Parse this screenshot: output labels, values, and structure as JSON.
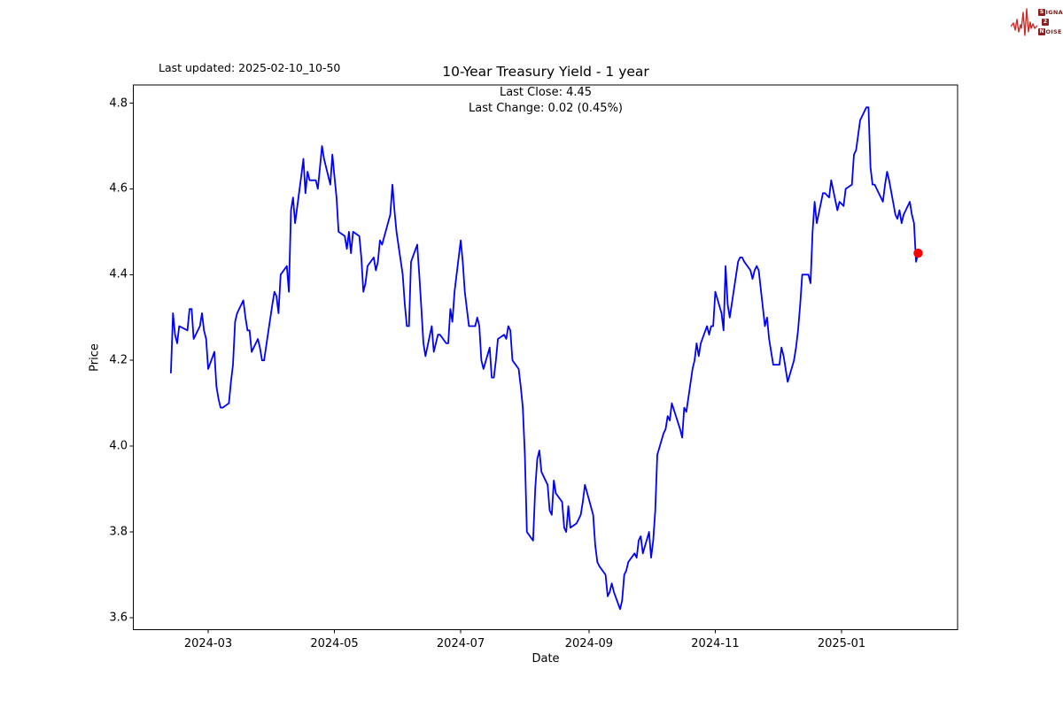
{
  "figure": {
    "last_updated": "Last updated: 2025-02-10_10-50",
    "title": "10-Year Treasury Yield - 1 year",
    "subtitle_line1": "Last Close: 4.45",
    "subtitle_line2": "Last Change: 0.02 (0.45%)"
  },
  "logo": {
    "rows": [
      {
        "boxed": "S",
        "rest": "IGNAL"
      },
      {
        "boxed": "2",
        "rest": ""
      },
      {
        "boxed": "N",
        "rest": "OISE"
      }
    ],
    "waveform_color": "#cf2b26",
    "box_color": "#8c1f1f",
    "text_color": "#7a1a1a"
  },
  "chart_data": {
    "type": "line",
    "title": "10-Year Treasury Yield - 1 year",
    "xlabel": "Date",
    "ylabel": "Price",
    "grid": false,
    "legend": "none",
    "ylim": [
      3.572,
      4.842
    ],
    "xlim": [
      "2024-01-24",
      "2025-02-26"
    ],
    "y_ticks": [
      "3.6",
      "3.8",
      "4.0",
      "4.2",
      "4.4",
      "4.6",
      "4.8"
    ],
    "x_ticks": [
      {
        "label": "2024-03",
        "date": "2024-03-01"
      },
      {
        "label": "2024-05",
        "date": "2024-05-01"
      },
      {
        "label": "2024-07",
        "date": "2024-07-01"
      },
      {
        "label": "2024-09",
        "date": "2024-09-01"
      },
      {
        "label": "2024-11",
        "date": "2024-11-01"
      },
      {
        "label": "2025-01",
        "date": "2025-01-01"
      }
    ],
    "last_point": {
      "date": "2025-02-07",
      "value": 4.45,
      "marker_color": "#ff0000"
    },
    "series": [
      {
        "name": "10-Year Treasury Yield",
        "color": "#0000ff",
        "points": [
          [
            "2024-02-12",
            4.17
          ],
          [
            "2024-02-13",
            4.31
          ],
          [
            "2024-02-14",
            4.26
          ],
          [
            "2024-02-15",
            4.24
          ],
          [
            "2024-02-16",
            4.28
          ],
          [
            "2024-02-20",
            4.27
          ],
          [
            "2024-02-21",
            4.32
          ],
          [
            "2024-02-22",
            4.32
          ],
          [
            "2024-02-23",
            4.25
          ],
          [
            "2024-02-26",
            4.28
          ],
          [
            "2024-02-27",
            4.31
          ],
          [
            "2024-02-28",
            4.27
          ],
          [
            "2024-02-29",
            4.25
          ],
          [
            "2024-03-01",
            4.18
          ],
          [
            "2024-03-04",
            4.22
          ],
          [
            "2024-03-05",
            4.14
          ],
          [
            "2024-03-06",
            4.11
          ],
          [
            "2024-03-07",
            4.09
          ],
          [
            "2024-03-08",
            4.09
          ],
          [
            "2024-03-11",
            4.1
          ],
          [
            "2024-03-12",
            4.15
          ],
          [
            "2024-03-13",
            4.19
          ],
          [
            "2024-03-14",
            4.29
          ],
          [
            "2024-03-15",
            4.31
          ],
          [
            "2024-03-18",
            4.34
          ],
          [
            "2024-03-19",
            4.3
          ],
          [
            "2024-03-20",
            4.27
          ],
          [
            "2024-03-21",
            4.27
          ],
          [
            "2024-03-22",
            4.22
          ],
          [
            "2024-03-25",
            4.25
          ],
          [
            "2024-03-26",
            4.23
          ],
          [
            "2024-03-27",
            4.2
          ],
          [
            "2024-03-28",
            4.2
          ],
          [
            "2024-04-01",
            4.33
          ],
          [
            "2024-04-02",
            4.36
          ],
          [
            "2024-04-03",
            4.35
          ],
          [
            "2024-04-04",
            4.31
          ],
          [
            "2024-04-05",
            4.4
          ],
          [
            "2024-04-08",
            4.42
          ],
          [
            "2024-04-09",
            4.36
          ],
          [
            "2024-04-10",
            4.55
          ],
          [
            "2024-04-11",
            4.58
          ],
          [
            "2024-04-12",
            4.52
          ],
          [
            "2024-04-15",
            4.63
          ],
          [
            "2024-04-16",
            4.67
          ],
          [
            "2024-04-17",
            4.59
          ],
          [
            "2024-04-18",
            4.64
          ],
          [
            "2024-04-19",
            4.62
          ],
          [
            "2024-04-22",
            4.62
          ],
          [
            "2024-04-23",
            4.6
          ],
          [
            "2024-04-24",
            4.65
          ],
          [
            "2024-04-25",
            4.7
          ],
          [
            "2024-04-26",
            4.67
          ],
          [
            "2024-04-29",
            4.61
          ],
          [
            "2024-04-30",
            4.68
          ],
          [
            "2024-05-01",
            4.63
          ],
          [
            "2024-05-02",
            4.58
          ],
          [
            "2024-05-03",
            4.5
          ],
          [
            "2024-05-06",
            4.49
          ],
          [
            "2024-05-07",
            4.46
          ],
          [
            "2024-05-08",
            4.5
          ],
          [
            "2024-05-09",
            4.45
          ],
          [
            "2024-05-10",
            4.5
          ],
          [
            "2024-05-13",
            4.49
          ],
          [
            "2024-05-14",
            4.44
          ],
          [
            "2024-05-15",
            4.36
          ],
          [
            "2024-05-16",
            4.38
          ],
          [
            "2024-05-17",
            4.42
          ],
          [
            "2024-05-20",
            4.44
          ],
          [
            "2024-05-21",
            4.41
          ],
          [
            "2024-05-22",
            4.43
          ],
          [
            "2024-05-23",
            4.48
          ],
          [
            "2024-05-24",
            4.47
          ],
          [
            "2024-05-28",
            4.54
          ],
          [
            "2024-05-29",
            4.61
          ],
          [
            "2024-05-30",
            4.55
          ],
          [
            "2024-05-31",
            4.5
          ],
          [
            "2024-06-03",
            4.4
          ],
          [
            "2024-06-04",
            4.33
          ],
          [
            "2024-06-05",
            4.28
          ],
          [
            "2024-06-06",
            4.28
          ],
          [
            "2024-06-07",
            4.43
          ],
          [
            "2024-06-10",
            4.47
          ],
          [
            "2024-06-11",
            4.4
          ],
          [
            "2024-06-12",
            4.32
          ],
          [
            "2024-06-13",
            4.24
          ],
          [
            "2024-06-14",
            4.21
          ],
          [
            "2024-06-17",
            4.28
          ],
          [
            "2024-06-18",
            4.22
          ],
          [
            "2024-06-20",
            4.26
          ],
          [
            "2024-06-21",
            4.26
          ],
          [
            "2024-06-24",
            4.24
          ],
          [
            "2024-06-25",
            4.24
          ],
          [
            "2024-06-26",
            4.32
          ],
          [
            "2024-06-27",
            4.29
          ],
          [
            "2024-06-28",
            4.36
          ],
          [
            "2024-07-01",
            4.48
          ],
          [
            "2024-07-02",
            4.43
          ],
          [
            "2024-07-03",
            4.36
          ],
          [
            "2024-07-05",
            4.28
          ],
          [
            "2024-07-08",
            4.28
          ],
          [
            "2024-07-09",
            4.3
          ],
          [
            "2024-07-10",
            4.28
          ],
          [
            "2024-07-11",
            4.2
          ],
          [
            "2024-07-12",
            4.18
          ],
          [
            "2024-07-15",
            4.23
          ],
          [
            "2024-07-16",
            4.16
          ],
          [
            "2024-07-17",
            4.16
          ],
          [
            "2024-07-18",
            4.2
          ],
          [
            "2024-07-19",
            4.25
          ],
          [
            "2024-07-22",
            4.26
          ],
          [
            "2024-07-23",
            4.25
          ],
          [
            "2024-07-24",
            4.28
          ],
          [
            "2024-07-25",
            4.27
          ],
          [
            "2024-07-26",
            4.2
          ],
          [
            "2024-07-29",
            4.18
          ],
          [
            "2024-07-30",
            4.14
          ],
          [
            "2024-07-31",
            4.09
          ],
          [
            "2024-08-01",
            3.98
          ],
          [
            "2024-08-02",
            3.8
          ],
          [
            "2024-08-05",
            3.78
          ],
          [
            "2024-08-06",
            3.9
          ],
          [
            "2024-08-07",
            3.97
          ],
          [
            "2024-08-08",
            3.99
          ],
          [
            "2024-08-09",
            3.94
          ],
          [
            "2024-08-12",
            3.91
          ],
          [
            "2024-08-13",
            3.85
          ],
          [
            "2024-08-14",
            3.84
          ],
          [
            "2024-08-15",
            3.92
          ],
          [
            "2024-08-16",
            3.89
          ],
          [
            "2024-08-19",
            3.87
          ],
          [
            "2024-08-20",
            3.81
          ],
          [
            "2024-08-21",
            3.8
          ],
          [
            "2024-08-22",
            3.86
          ],
          [
            "2024-08-23",
            3.81
          ],
          [
            "2024-08-26",
            3.82
          ],
          [
            "2024-08-27",
            3.83
          ],
          [
            "2024-08-28",
            3.84
          ],
          [
            "2024-08-29",
            3.87
          ],
          [
            "2024-08-30",
            3.91
          ],
          [
            "2024-09-03",
            3.84
          ],
          [
            "2024-09-04",
            3.77
          ],
          [
            "2024-09-05",
            3.73
          ],
          [
            "2024-09-06",
            3.72
          ],
          [
            "2024-09-09",
            3.7
          ],
          [
            "2024-09-10",
            3.65
          ],
          [
            "2024-09-11",
            3.66
          ],
          [
            "2024-09-12",
            3.68
          ],
          [
            "2024-09-13",
            3.66
          ],
          [
            "2024-09-16",
            3.62
          ],
          [
            "2024-09-17",
            3.64
          ],
          [
            "2024-09-18",
            3.7
          ],
          [
            "2024-09-19",
            3.71
          ],
          [
            "2024-09-20",
            3.73
          ],
          [
            "2024-09-23",
            3.75
          ],
          [
            "2024-09-24",
            3.74
          ],
          [
            "2024-09-25",
            3.78
          ],
          [
            "2024-09-26",
            3.79
          ],
          [
            "2024-09-27",
            3.75
          ],
          [
            "2024-09-30",
            3.8
          ],
          [
            "2024-10-01",
            3.74
          ],
          [
            "2024-10-02",
            3.78
          ],
          [
            "2024-10-03",
            3.85
          ],
          [
            "2024-10-04",
            3.98
          ],
          [
            "2024-10-07",
            4.03
          ],
          [
            "2024-10-08",
            4.04
          ],
          [
            "2024-10-09",
            4.07
          ],
          [
            "2024-10-10",
            4.06
          ],
          [
            "2024-10-11",
            4.1
          ],
          [
            "2024-10-15",
            4.04
          ],
          [
            "2024-10-16",
            4.02
          ],
          [
            "2024-10-17",
            4.09
          ],
          [
            "2024-10-18",
            4.08
          ],
          [
            "2024-10-21",
            4.18
          ],
          [
            "2024-10-22",
            4.2
          ],
          [
            "2024-10-23",
            4.24
          ],
          [
            "2024-10-24",
            4.21
          ],
          [
            "2024-10-25",
            4.24
          ],
          [
            "2024-10-28",
            4.28
          ],
          [
            "2024-10-29",
            4.26
          ],
          [
            "2024-10-30",
            4.28
          ],
          [
            "2024-10-31",
            4.28
          ],
          [
            "2024-11-01",
            4.36
          ],
          [
            "2024-11-04",
            4.31
          ],
          [
            "2024-11-05",
            4.27
          ],
          [
            "2024-11-06",
            4.42
          ],
          [
            "2024-11-07",
            4.33
          ],
          [
            "2024-11-08",
            4.3
          ],
          [
            "2024-11-12",
            4.43
          ],
          [
            "2024-11-13",
            4.44
          ],
          [
            "2024-11-14",
            4.44
          ],
          [
            "2024-11-15",
            4.43
          ],
          [
            "2024-11-18",
            4.41
          ],
          [
            "2024-11-19",
            4.39
          ],
          [
            "2024-11-20",
            4.41
          ],
          [
            "2024-11-21",
            4.42
          ],
          [
            "2024-11-22",
            4.41
          ],
          [
            "2024-11-25",
            4.28
          ],
          [
            "2024-11-26",
            4.3
          ],
          [
            "2024-11-27",
            4.25
          ],
          [
            "2024-11-29",
            4.19
          ],
          [
            "2024-12-02",
            4.19
          ],
          [
            "2024-12-03",
            4.23
          ],
          [
            "2024-12-04",
            4.21
          ],
          [
            "2024-12-05",
            4.18
          ],
          [
            "2024-12-06",
            4.15
          ],
          [
            "2024-12-09",
            4.2
          ],
          [
            "2024-12-10",
            4.23
          ],
          [
            "2024-12-11",
            4.27
          ],
          [
            "2024-12-12",
            4.33
          ],
          [
            "2024-12-13",
            4.4
          ],
          [
            "2024-12-16",
            4.4
          ],
          [
            "2024-12-17",
            4.38
          ],
          [
            "2024-12-18",
            4.5
          ],
          [
            "2024-12-19",
            4.57
          ],
          [
            "2024-12-20",
            4.52
          ],
          [
            "2024-12-23",
            4.59
          ],
          [
            "2024-12-24",
            4.59
          ],
          [
            "2024-12-26",
            4.58
          ],
          [
            "2024-12-27",
            4.62
          ],
          [
            "2024-12-30",
            4.55
          ],
          [
            "2024-12-31",
            4.57
          ],
          [
            "2025-01-02",
            4.56
          ],
          [
            "2025-01-03",
            4.6
          ],
          [
            "2025-01-06",
            4.61
          ],
          [
            "2025-01-07",
            4.68
          ],
          [
            "2025-01-08",
            4.69
          ],
          [
            "2025-01-10",
            4.76
          ],
          [
            "2025-01-13",
            4.79
          ],
          [
            "2025-01-14",
            4.79
          ],
          [
            "2025-01-15",
            4.65
          ],
          [
            "2025-01-16",
            4.61
          ],
          [
            "2025-01-17",
            4.61
          ],
          [
            "2025-01-21",
            4.57
          ],
          [
            "2025-01-22",
            4.61
          ],
          [
            "2025-01-23",
            4.64
          ],
          [
            "2025-01-24",
            4.62
          ],
          [
            "2025-01-27",
            4.54
          ],
          [
            "2025-01-28",
            4.53
          ],
          [
            "2025-01-29",
            4.55
          ],
          [
            "2025-01-30",
            4.52
          ],
          [
            "2025-01-31",
            4.54
          ],
          [
            "2025-02-03",
            4.57
          ],
          [
            "2025-02-04",
            4.54
          ],
          [
            "2025-02-05",
            4.52
          ],
          [
            "2025-02-06",
            4.43
          ],
          [
            "2025-02-07",
            4.45
          ]
        ]
      }
    ]
  }
}
